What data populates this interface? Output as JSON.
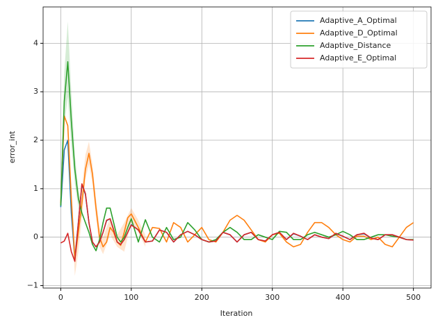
{
  "chart_data": {
    "type": "line",
    "xlabel": "Iteration",
    "ylabel": "error_int",
    "x": [
      0,
      5,
      10,
      15,
      20,
      25,
      30,
      35,
      40,
      45,
      50,
      55,
      60,
      65,
      70,
      75,
      80,
      85,
      90,
      95,
      100,
      110,
      120,
      130,
      140,
      150,
      160,
      170,
      180,
      190,
      200,
      210,
      220,
      230,
      240,
      250,
      260,
      270,
      280,
      290,
      300,
      310,
      320,
      330,
      340,
      350,
      360,
      370,
      380,
      390,
      400,
      410,
      420,
      430,
      440,
      450,
      460,
      470,
      480,
      490,
      500
    ],
    "xlim": [
      -25,
      525
    ],
    "ylim": [
      -1.05,
      4.75
    ],
    "xticks": [
      0,
      100,
      200,
      300,
      400,
      500
    ],
    "yticks": [
      {
        "value": -1,
        "label": "−1"
      },
      0,
      1,
      2,
      3,
      4
    ],
    "grid": true,
    "legend": "upper right",
    "series": [
      {
        "name": "Adaptive_A_Optimal",
        "color": "#1f77b4",
        "values": [
          0.62,
          1.8,
          2.0,
          0.5,
          -0.45,
          0.3,
          1.08,
          0.88,
          0.3,
          -0.1,
          -0.2,
          -0.1,
          0.1,
          0.34,
          0.38,
          0.15,
          -0.1,
          -0.15,
          -0.05,
          0.1,
          0.26,
          0.15,
          -0.1,
          -0.08,
          0.15,
          0.1,
          -0.1,
          0.05,
          0.12,
          0.05,
          -0.05,
          -0.1,
          -0.08,
          0.1,
          0.05,
          -0.1,
          0.05,
          0.1,
          -0.05,
          -0.08,
          0.05,
          0.1,
          -0.05,
          0.07,
          0.02,
          -0.05,
          0.05,
          0,
          -0.03,
          0.07,
          0.02,
          -0.05,
          0.05,
          0.07,
          -0.02,
          -0.05,
          0.05,
          0.05,
          0,
          -0.05,
          -0.06
        ]
      },
      {
        "name": "Adaptive_D_Optimal",
        "color": "#ff7f0e",
        "values": [
          0.7,
          2.5,
          2.3,
          0.8,
          -0.45,
          0.1,
          0.7,
          1.4,
          1.73,
          1.3,
          0.6,
          0.0,
          -0.2,
          -0.1,
          0.2,
          0.1,
          -0.1,
          -0.17,
          0.1,
          0.4,
          0.48,
          0.2,
          -0.1,
          0.2,
          0.18,
          -0.1,
          0.3,
          0.2,
          -0.1,
          0.05,
          0.2,
          -0.05,
          -0.1,
          0.1,
          0.35,
          0.45,
          0.35,
          0.15,
          -0.05,
          -0.1,
          0.05,
          0.08,
          -0.1,
          -0.2,
          -0.15,
          0.1,
          0.3,
          0.3,
          0.2,
          0.05,
          -0.05,
          -0.1,
          0.02,
          0.02,
          -0.05,
          0.0,
          -0.15,
          -0.2,
          0.0,
          0.2,
          0.3
        ],
        "band": {
          "x": [
            15,
            20,
            25,
            30,
            35,
            40,
            45,
            50,
            55,
            60,
            70,
            80,
            90,
            100,
            110,
            120
          ],
          "lower": [
            0.6,
            -0.8,
            -0.3,
            0.4,
            1.2,
            1.5,
            1.1,
            0.4,
            -0.2,
            -0.35,
            0.05,
            -0.2,
            -0.3,
            0.3,
            0.1,
            -0.2
          ],
          "upper": [
            1.0,
            -0.2,
            0.4,
            1.0,
            1.7,
            1.97,
            1.5,
            0.8,
            0.2,
            0.0,
            0.4,
            0.05,
            0.3,
            0.6,
            0.35,
            0.05
          ]
        }
      },
      {
        "name": "Adaptive_Distance",
        "color": "#2ca02c",
        "values": [
          0.65,
          2.8,
          3.62,
          2.4,
          1.4,
          0.8,
          0.5,
          0.3,
          0.1,
          -0.15,
          -0.28,
          -0.05,
          0.3,
          0.6,
          0.6,
          0.3,
          0.0,
          -0.1,
          0.0,
          0.2,
          0.38,
          -0.1,
          0.36,
          0.0,
          -0.1,
          0.2,
          -0.05,
          0.0,
          0.3,
          0.15,
          -0.05,
          -0.1,
          -0.05,
          0.1,
          0.2,
          0.1,
          -0.05,
          -0.05,
          0.05,
          0.0,
          -0.05,
          0.12,
          0.1,
          -0.05,
          -0.05,
          0.05,
          0.1,
          0.05,
          0.0,
          0.05,
          0.12,
          0.05,
          -0.05,
          -0.05,
          0.0,
          0.05,
          0.05,
          0.02,
          0.0,
          -0.05,
          -0.05
        ],
        "band": {
          "x": [
            0,
            5,
            10,
            15,
            20,
            25,
            30
          ],
          "lower": [
            0.6,
            2.3,
            2.9,
            1.9,
            1.1,
            0.6,
            0.4
          ],
          "upper": [
            0.75,
            3.4,
            4.45,
            3.0,
            1.7,
            1.0,
            0.6
          ]
        }
      },
      {
        "name": "Adaptive_E_Optimal",
        "color": "#d62728",
        "values": [
          -0.12,
          -0.08,
          0.08,
          -0.3,
          -0.5,
          0.3,
          1.1,
          0.9,
          0.3,
          -0.1,
          -0.2,
          -0.1,
          0.1,
          0.35,
          0.38,
          0.15,
          -0.1,
          -0.15,
          -0.05,
          0.1,
          0.25,
          0.15,
          -0.1,
          -0.08,
          0.15,
          0.1,
          -0.1,
          0.05,
          0.12,
          0.05,
          -0.05,
          -0.1,
          -0.08,
          0.1,
          0.05,
          -0.1,
          0.05,
          0.1,
          -0.05,
          -0.08,
          0.05,
          0.1,
          -0.05,
          0.08,
          0.02,
          -0.05,
          0.05,
          0,
          -0.03,
          0.08,
          0.02,
          -0.05,
          0.05,
          0.08,
          -0.02,
          -0.05,
          0.05,
          0.05,
          0,
          -0.05,
          -0.06
        ]
      }
    ]
  }
}
